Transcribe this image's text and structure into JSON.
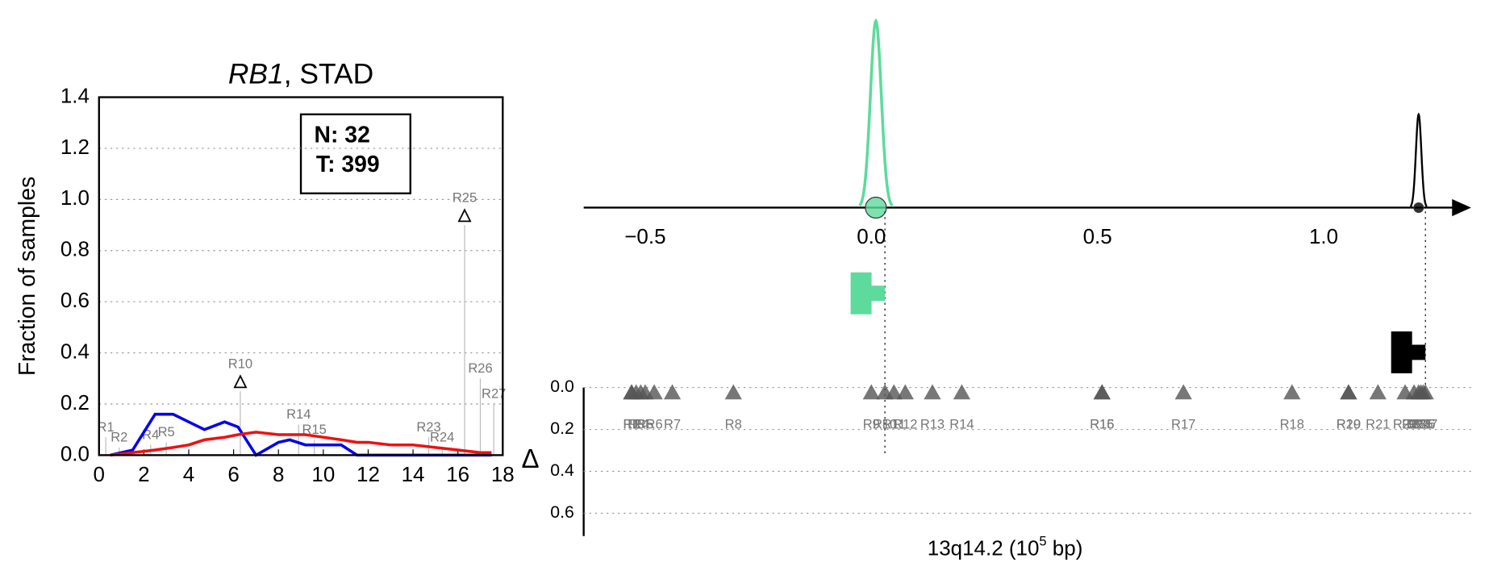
{
  "chart_data": [
    {
      "type": "line",
      "title": [
        "RB1",
        ", STAD"
      ],
      "ylabel": "Fraction of samples",
      "xlim": [
        0,
        18
      ],
      "xticks": [
        0,
        2,
        4,
        6,
        8,
        10,
        12,
        14,
        16,
        18
      ],
      "ylim": [
        0,
        1.4
      ],
      "yticks": [
        {
          "value": 0,
          "label": "0.0"
        },
        {
          "value": 0.2,
          "label": "0.2"
        },
        {
          "value": 0.4,
          "label": "0.4"
        },
        {
          "value": 0.6,
          "label": "0.6"
        },
        {
          "value": 0.8,
          "label": "0.8"
        },
        {
          "value": 1.0,
          "label": "1.0"
        },
        {
          "value": 1.2,
          "label": "1.2"
        },
        {
          "value": 1.4,
          "label": "1.4"
        }
      ],
      "grid": true,
      "legend": [
        "N: 32",
        "T: 399"
      ],
      "x": [
        0.5,
        1.5,
        2.5,
        3.3,
        4,
        4.7,
        5.6,
        6.2,
        7,
        8,
        8.5,
        9.2,
        10.8,
        11.5,
        12,
        13,
        14,
        15,
        16,
        17,
        17.5
      ],
      "series": [
        {
          "color": "#0000ee",
          "values": [
            0,
            0.02,
            0.16,
            0.16,
            0.13,
            0.1,
            0.13,
            0.11,
            0,
            0.05,
            0.06,
            0.04,
            0.04,
            0,
            0,
            0,
            0,
            0,
            0,
            0,
            0
          ]
        },
        {
          "color": "#ee1111",
          "values": [
            0,
            0.01,
            0.02,
            0.03,
            0.04,
            0.06,
            0.07,
            0.08,
            0.09,
            0.08,
            0.08,
            0.08,
            0.06,
            0.05,
            0.05,
            0.04,
            0.04,
            0.03,
            0.02,
            0.01,
            0.01
          ]
        }
      ],
      "annotations": [
        {
          "text": "R1",
          "x": 0.3,
          "y": 0.07
        },
        {
          "text": "R2",
          "x": 0.9,
          "y": 0.03
        },
        {
          "text": "R4",
          "x": 2.3,
          "y": 0.04
        },
        {
          "text": "R5",
          "x": 3.0,
          "y": 0.05
        },
        {
          "text": "R10",
          "x": 6.3,
          "y": 0.25,
          "marker": true
        },
        {
          "text": "R14",
          "x": 8.9,
          "y": 0.12
        },
        {
          "text": "R15",
          "x": 9.6,
          "y": 0.06
        },
        {
          "text": "R23",
          "x": 14.7,
          "y": 0.07
        },
        {
          "text": "R24",
          "x": 15.3,
          "y": 0.03
        },
        {
          "text": "R25",
          "x": 16.3,
          "y": 0.9,
          "marker": true
        },
        {
          "text": "R26",
          "x": 17.0,
          "y": 0.3
        },
        {
          "text": "R27",
          "x": 17.6,
          "y": 0.2
        }
      ]
    },
    {
      "type": "locus",
      "xlabel": [
        "13q14.2 (10",
        "5",
        " bp)"
      ],
      "ylabel": "Δ",
      "xlim": [
        -0.636,
        1.326
      ],
      "xticks": [
        {
          "value": -0.5,
          "label": "−0.5"
        },
        {
          "value": 0,
          "label": "0.0"
        },
        {
          "value": 0.5,
          "label": "0.5"
        },
        {
          "value": 1.0,
          "label": "1.0"
        }
      ],
      "ylim": [
        0,
        0.7
      ],
      "yticks": [
        {
          "value": 0,
          "label": "0.0"
        },
        {
          "value": 0.2,
          "label": "0.2"
        },
        {
          "value": 0.4,
          "label": "0.4"
        },
        {
          "value": 0.6,
          "label": "0.6"
        }
      ],
      "components": [
        {
          "color": "#5ddb9c",
          "mean": 0.01,
          "sd": 0.012,
          "height": 1.0,
          "site": 0.03
        },
        {
          "color": "#000000",
          "mean": 1.21,
          "sd": 0.006,
          "height": 0.5,
          "site": 1.225
        }
      ],
      "regions": [
        {
          "label": "R1",
          "x": -0.53,
          "delta": 0.02
        },
        {
          "label": "R2",
          "x": -0.53,
          "delta": 0.02
        },
        {
          "label": "R3",
          "x": -0.52,
          "delta": 0.02
        },
        {
          "label": "R4",
          "x": -0.51,
          "delta": 0.02
        },
        {
          "label": "R5",
          "x": -0.5,
          "delta": 0.02
        },
        {
          "label": "R6",
          "x": -0.48,
          "delta": 0.02
        },
        {
          "label": "R7",
          "x": -0.44,
          "delta": 0.02
        },
        {
          "label": "R8",
          "x": -0.305,
          "delta": 0.02
        },
        {
          "label": "R9",
          "x": 0.0,
          "delta": 0.02
        },
        {
          "label": "R10",
          "x": 0.03,
          "delta": 0.02
        },
        {
          "label": "R11",
          "x": 0.05,
          "delta": 0.02
        },
        {
          "label": "R12",
          "x": 0.075,
          "delta": 0.02
        },
        {
          "label": "R13",
          "x": 0.135,
          "delta": 0.02
        },
        {
          "label": "R14",
          "x": 0.2,
          "delta": 0.02
        },
        {
          "label": "R15",
          "x": 0.51,
          "delta": 0.02
        },
        {
          "label": "R16",
          "x": 0.51,
          "delta": 0.02
        },
        {
          "label": "R17",
          "x": 0.69,
          "delta": 0.02
        },
        {
          "label": "R18",
          "x": 0.93,
          "delta": 0.02
        },
        {
          "label": "R19",
          "x": 1.055,
          "delta": 0.02
        },
        {
          "label": "R20",
          "x": 1.055,
          "delta": 0.02
        },
        {
          "label": "R21",
          "x": 1.12,
          "delta": 0.02
        },
        {
          "label": "R22",
          "x": 1.18,
          "delta": 0.02
        },
        {
          "label": "R23",
          "x": 1.2,
          "delta": 0.02
        },
        {
          "label": "R24",
          "x": 1.21,
          "delta": 0.02
        },
        {
          "label": "R25",
          "x": 1.215,
          "delta": 0.02
        },
        {
          "label": "R26",
          "x": 1.22,
          "delta": 0.02
        },
        {
          "label": "R27",
          "x": 1.225,
          "delta": 0.02
        }
      ]
    }
  ]
}
